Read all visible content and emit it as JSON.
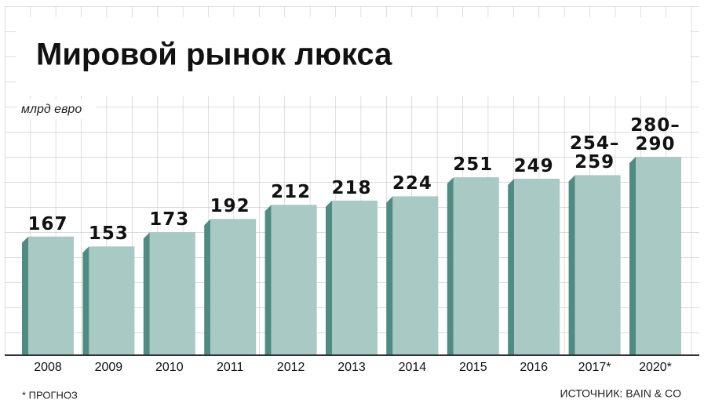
{
  "chart_data": {
    "type": "bar",
    "title": "Мировой рынок люкса",
    "unit_label": "млрд евро",
    "categories": [
      "2008",
      "2009",
      "2010",
      "2011",
      "2012",
      "2013",
      "2014",
      "2015",
      "2016",
      "2017*",
      "2020*"
    ],
    "values": [
      167,
      153,
      173,
      192,
      212,
      218,
      224,
      251,
      249,
      254,
      280
    ],
    "value_labels": [
      "167",
      "153",
      "173",
      "192",
      "212",
      "218",
      "224",
      "251",
      "249",
      "254–259",
      "280–290"
    ],
    "color": "#a9c9c5",
    "side_color": "#4f8b82",
    "ylim": [
      0,
      300
    ],
    "grid": true,
    "note": "* ПРОГНОЗ",
    "source": "ИСТОЧНИК: BAIN & CO"
  }
}
